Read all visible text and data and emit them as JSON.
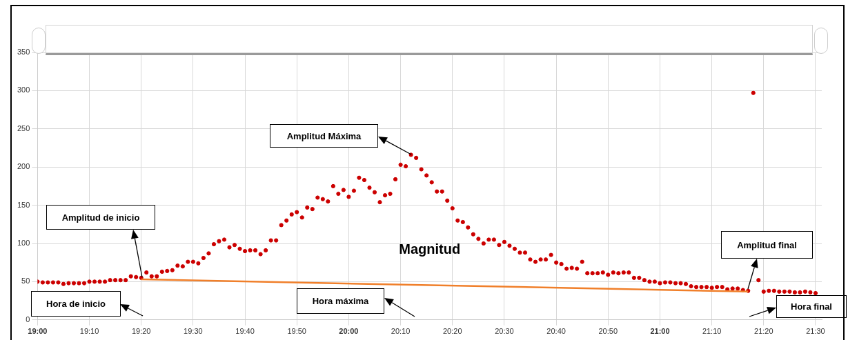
{
  "chart_data": {
    "type": "scatter",
    "xlim": [
      19,
      21.52
    ],
    "ylim": [
      0,
      350
    ],
    "xticks": [
      {
        "value": 19,
        "label": "19:00"
      },
      {
        "value": 19.1667,
        "label": "19:10"
      },
      {
        "value": 19.3333,
        "label": "19:20"
      },
      {
        "value": 19.5,
        "label": "19:30"
      },
      {
        "value": 19.6667,
        "label": "19:40"
      },
      {
        "value": 19.8333,
        "label": "19:50"
      },
      {
        "value": 20,
        "label": "20:00"
      },
      {
        "value": 20.1667,
        "label": "20:10"
      },
      {
        "value": 20.3333,
        "label": "20:20"
      },
      {
        "value": 20.5,
        "label": "20:30"
      },
      {
        "value": 20.6667,
        "label": "20:40"
      },
      {
        "value": 20.8333,
        "label": "20:50"
      },
      {
        "value": 21,
        "label": "21:00"
      },
      {
        "value": 21.1667,
        "label": "21:10"
      },
      {
        "value": 21.3333,
        "label": "21:20"
      },
      {
        "value": 21.5,
        "label": "21:30"
      }
    ],
    "yticks": [
      0,
      50,
      100,
      150,
      200,
      250,
      300,
      350
    ],
    "grid": true,
    "legend": false,
    "series": [
      {
        "type": "scatter",
        "color": "#cc0000",
        "x": [
          19,
          19.0167,
          19.0333,
          19.05,
          19.0667,
          19.0833,
          19.1,
          19.1167,
          19.1333,
          19.15,
          19.1667,
          19.1833,
          19.2,
          19.2167,
          19.2333,
          19.25,
          19.2667,
          19.2833,
          19.3,
          19.3167,
          19.3333,
          19.35,
          19.3667,
          19.3833,
          19.4,
          19.4167,
          19.4333,
          19.45,
          19.4667,
          19.4833,
          19.5,
          19.5167,
          19.5333,
          19.55,
          19.5667,
          19.5833,
          19.6,
          19.6167,
          19.6333,
          19.65,
          19.6667,
          19.6833,
          19.7,
          19.7167,
          19.7333,
          19.75,
          19.7667,
          19.7833,
          19.8,
          19.8167,
          19.8333,
          19.85,
          19.8667,
          19.8833,
          19.9,
          19.9167,
          19.9333,
          19.95,
          19.9667,
          19.9833,
          20,
          20.0167,
          20.0333,
          20.05,
          20.0667,
          20.0833,
          20.1,
          20.1167,
          20.1333,
          20.15,
          20.1667,
          20.1833,
          20.2,
          20.2167,
          20.2333,
          20.25,
          20.2667,
          20.2833,
          20.3,
          20.3167,
          20.3333,
          20.35,
          20.3667,
          20.3833,
          20.4,
          20.4167,
          20.4333,
          20.45,
          20.4667,
          20.4833,
          20.5,
          20.5167,
          20.5333,
          20.55,
          20.5667,
          20.5833,
          20.6,
          20.6167,
          20.6333,
          20.65,
          20.6667,
          20.6833,
          20.7,
          20.7167,
          20.7333,
          20.75,
          20.7667,
          20.7833,
          20.8,
          20.8167,
          20.8333,
          20.85,
          20.8667,
          20.8833,
          20.9,
          20.9167,
          20.9333,
          20.95,
          20.9667,
          20.9833,
          21,
          21.0167,
          21.0333,
          21.05,
          21.0667,
          21.0833,
          21.1,
          21.1167,
          21.1333,
          21.15,
          21.1667,
          21.1833,
          21.2,
          21.2167,
          21.2333,
          21.25,
          21.2667,
          21.2833,
          21.3,
          21.3167,
          21.3333,
          21.35,
          21.3667,
          21.3833,
          21.4,
          21.4167,
          21.4333,
          21.45,
          21.4667,
          21.4833,
          21.5
        ],
        "values": [
          50,
          49,
          49,
          49,
          49,
          47,
          48,
          48,
          48,
          48,
          50,
          50,
          50,
          50,
          52,
          52,
          52,
          52,
          57,
          56,
          55,
          62,
          57,
          57,
          63,
          64,
          65,
          71,
          70,
          76,
          76,
          74,
          81,
          87,
          99,
          103,
          105,
          95,
          98,
          93,
          90,
          91,
          91,
          86,
          91,
          104,
          104,
          124,
          130,
          138,
          141,
          134,
          147,
          145,
          160,
          158,
          155,
          175,
          165,
          170,
          161,
          169,
          186,
          183,
          173,
          167,
          154,
          163,
          165,
          184,
          203,
          201,
          216,
          212,
          197,
          189,
          180,
          168,
          168,
          156,
          146,
          130,
          128,
          121,
          112,
          106,
          100,
          105,
          105,
          98,
          102,
          97,
          93,
          88,
          88,
          79,
          76,
          79,
          79,
          85,
          75,
          73,
          67,
          68,
          67,
          76,
          61,
          61,
          61,
          62,
          59,
          62,
          61,
          62,
          62,
          55,
          55,
          52,
          50,
          50,
          48,
          49,
          49,
          48,
          48,
          47,
          44,
          43,
          43,
          43,
          42,
          43,
          43,
          40,
          41,
          41,
          39,
          38,
          297,
          52,
          37,
          38,
          38,
          37,
          37,
          37,
          36,
          36,
          37,
          36,
          35
        ]
      },
      {
        "type": "line",
        "color": "#f07f2a",
        "x": [
          19.3333,
          21.2833
        ],
        "values": [
          53,
          37
        ]
      }
    ],
    "annotations": [
      "Amplitud de inicio",
      "Hora de inicio",
      "Amplitud Máxima",
      "Hora máxima",
      "Amplitud final",
      "Hora final",
      "Magnitud"
    ]
  }
}
